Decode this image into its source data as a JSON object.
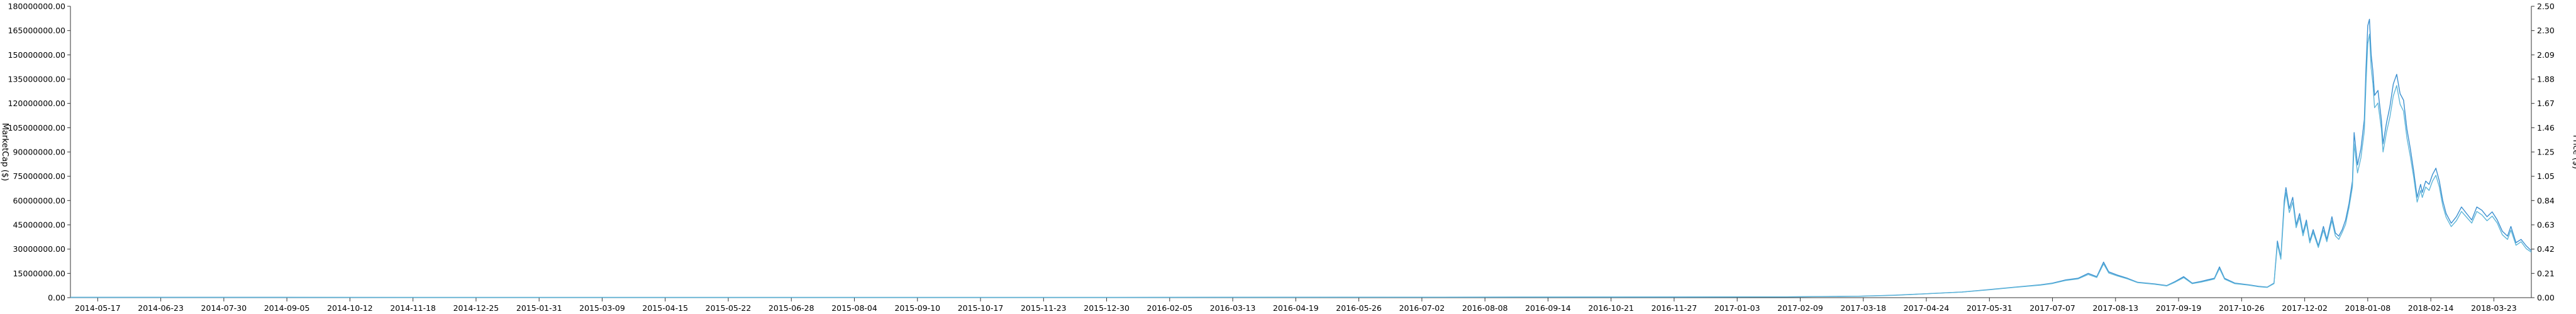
{
  "chart_data": {
    "type": "line",
    "title": "",
    "ylabel_left": "MarketCap ($)",
    "ylabel_right": "Price ($)",
    "y_left_range": [
      0,
      180000000
    ],
    "y_right_range": [
      0,
      2.5
    ],
    "x_range": [
      "2014-05-01",
      "2018-04-14"
    ],
    "grid": false,
    "legend": "none",
    "colors": {
      "marketcap": "#3a8fd0",
      "price": "#5fb6d9",
      "axis": "#333333"
    },
    "y_left_ticks": [
      "0.00",
      "15000000.00",
      "30000000.00",
      "45000000.00",
      "60000000.00",
      "75000000.00",
      "90000000.00",
      "105000000.00",
      "120000000.00",
      "135000000.00",
      "150000000.00",
      "165000000.00",
      "180000000.00"
    ],
    "y_right_ticks": [
      "0.00",
      "0.21",
      "0.42",
      "0.63",
      "0.84",
      "1.05",
      "1.25",
      "1.46",
      "1.67",
      "1.88",
      "2.09",
      "2.30",
      "2.50"
    ],
    "x_ticks": [
      "2014-05-17",
      "2014-06-23",
      "2014-07-30",
      "2014-09-05",
      "2014-10-12",
      "2014-11-18",
      "2014-12-25",
      "2015-01-31",
      "2015-03-09",
      "2015-04-15",
      "2015-05-22",
      "2015-06-28",
      "2015-08-04",
      "2015-09-10",
      "2015-10-17",
      "2015-11-23",
      "2015-12-30",
      "2016-02-05",
      "2016-03-13",
      "2016-04-19",
      "2016-05-26",
      "2016-07-02",
      "2016-08-08",
      "2016-09-14",
      "2016-10-21",
      "2016-11-27",
      "2017-01-03",
      "2017-02-09",
      "2017-03-18",
      "2017-04-24",
      "2017-05-31",
      "2017-07-07",
      "2017-08-13",
      "2017-09-19",
      "2017-10-26",
      "2017-12-02",
      "2018-01-08",
      "2018-02-14",
      "2018-03-23"
    ],
    "series": [
      {
        "name": "MarketCap",
        "axis": "left",
        "points": [
          [
            "2014-05-01",
            200000
          ],
          [
            "2014-09-01",
            200000
          ],
          [
            "2015-01-01",
            150000
          ],
          [
            "2015-06-01",
            150000
          ],
          [
            "2015-12-01",
            150000
          ],
          [
            "2016-06-01",
            300000
          ],
          [
            "2016-12-01",
            400000
          ],
          [
            "2017-02-01",
            500000
          ],
          [
            "2017-03-15",
            900000
          ],
          [
            "2017-04-05",
            1500000
          ],
          [
            "2017-04-25",
            2500000
          ],
          [
            "2017-05-15",
            3500000
          ],
          [
            "2017-05-31",
            5000000
          ],
          [
            "2017-06-15",
            6500000
          ],
          [
            "2017-06-30",
            8000000
          ],
          [
            "2017-07-07",
            9000000
          ],
          [
            "2017-07-15",
            11000000
          ],
          [
            "2017-07-22",
            12000000
          ],
          [
            "2017-07-28",
            15000000
          ],
          [
            "2017-08-02",
            13000000
          ],
          [
            "2017-08-06",
            22000000
          ],
          [
            "2017-08-09",
            16000000
          ],
          [
            "2017-08-14",
            14000000
          ],
          [
            "2017-08-20",
            12000000
          ],
          [
            "2017-08-26",
            9500000
          ],
          [
            "2017-09-05",
            8500000
          ],
          [
            "2017-09-12",
            7500000
          ],
          [
            "2017-09-17",
            10000000
          ],
          [
            "2017-09-22",
            13000000
          ],
          [
            "2017-09-27",
            9000000
          ],
          [
            "2017-10-02",
            10000000
          ],
          [
            "2017-10-06",
            11000000
          ],
          [
            "2017-10-10",
            12000000
          ],
          [
            "2017-10-13",
            19000000
          ],
          [
            "2017-10-16",
            12000000
          ],
          [
            "2017-10-22",
            9000000
          ],
          [
            "2017-10-30",
            8000000
          ],
          [
            "2017-11-05",
            7000000
          ],
          [
            "2017-11-10",
            6500000
          ],
          [
            "2017-11-14",
            9000000
          ],
          [
            "2017-11-16",
            35000000
          ],
          [
            "2017-11-18",
            25000000
          ],
          [
            "2017-11-20",
            60000000
          ],
          [
            "2017-11-21",
            68000000
          ],
          [
            "2017-11-23",
            55000000
          ],
          [
            "2017-11-25",
            62000000
          ],
          [
            "2017-11-27",
            45000000
          ],
          [
            "2017-11-29",
            52000000
          ],
          [
            "2017-12-01",
            40000000
          ],
          [
            "2017-12-03",
            48000000
          ],
          [
            "2017-12-05",
            35000000
          ],
          [
            "2017-12-07",
            42000000
          ],
          [
            "2017-12-10",
            32000000
          ],
          [
            "2017-12-13",
            44000000
          ],
          [
            "2017-12-15",
            36000000
          ],
          [
            "2017-12-18",
            50000000
          ],
          [
            "2017-12-20",
            40000000
          ],
          [
            "2017-12-22",
            38000000
          ],
          [
            "2017-12-24",
            42000000
          ],
          [
            "2017-12-26",
            48000000
          ],
          [
            "2017-12-28",
            58000000
          ],
          [
            "2017-12-30",
            72000000
          ],
          [
            "2017-12-31",
            102000000
          ],
          [
            "2018-01-02",
            82000000
          ],
          [
            "2018-01-04",
            92000000
          ],
          [
            "2018-01-06",
            110000000
          ],
          [
            "2018-01-07",
            142000000
          ],
          [
            "2018-01-08",
            168000000
          ],
          [
            "2018-01-09",
            172000000
          ],
          [
            "2018-01-10",
            150000000
          ],
          [
            "2018-01-11",
            140000000
          ],
          [
            "2018-01-12",
            125000000
          ],
          [
            "2018-01-14",
            128000000
          ],
          [
            "2018-01-16",
            110000000
          ],
          [
            "2018-01-17",
            95000000
          ],
          [
            "2018-01-19",
            108000000
          ],
          [
            "2018-01-21",
            118000000
          ],
          [
            "2018-01-23",
            132000000
          ],
          [
            "2018-01-25",
            138000000
          ],
          [
            "2018-01-27",
            126000000
          ],
          [
            "2018-01-29",
            122000000
          ],
          [
            "2018-01-31",
            104000000
          ],
          [
            "2018-02-02",
            92000000
          ],
          [
            "2018-02-04",
            78000000
          ],
          [
            "2018-02-06",
            62000000
          ],
          [
            "2018-02-08",
            70000000
          ],
          [
            "2018-02-09",
            65000000
          ],
          [
            "2018-02-11",
            72000000
          ],
          [
            "2018-02-13",
            70000000
          ],
          [
            "2018-02-15",
            76000000
          ],
          [
            "2018-02-17",
            80000000
          ],
          [
            "2018-02-19",
            72000000
          ],
          [
            "2018-02-21",
            60000000
          ],
          [
            "2018-02-23",
            52000000
          ],
          [
            "2018-02-26",
            46000000
          ],
          [
            "2018-03-01",
            50000000
          ],
          [
            "2018-03-04",
            56000000
          ],
          [
            "2018-03-07",
            52000000
          ],
          [
            "2018-03-10",
            48000000
          ],
          [
            "2018-03-13",
            56000000
          ],
          [
            "2018-03-16",
            54000000
          ],
          [
            "2018-03-19",
            50000000
          ],
          [
            "2018-03-22",
            53000000
          ],
          [
            "2018-03-25",
            48000000
          ],
          [
            "2018-03-28",
            41000000
          ],
          [
            "2018-03-31",
            38000000
          ],
          [
            "2018-04-02",
            44000000
          ],
          [
            "2018-04-05",
            34000000
          ],
          [
            "2018-04-08",
            36000000
          ],
          [
            "2018-04-11",
            32000000
          ],
          [
            "2018-04-14",
            29000000
          ]
        ]
      },
      {
        "name": "Price",
        "axis": "right",
        "points": [
          [
            "2014-05-01",
            0.003
          ],
          [
            "2014-09-01",
            0.003
          ],
          [
            "2015-01-01",
            0.002
          ],
          [
            "2015-06-01",
            0.002
          ],
          [
            "2015-12-01",
            0.002
          ],
          [
            "2016-06-01",
            0.004
          ],
          [
            "2016-12-01",
            0.006
          ],
          [
            "2017-02-01",
            0.007
          ],
          [
            "2017-03-15",
            0.012
          ],
          [
            "2017-04-05",
            0.02
          ],
          [
            "2017-04-25",
            0.034
          ],
          [
            "2017-05-15",
            0.048
          ],
          [
            "2017-05-31",
            0.068
          ],
          [
            "2017-06-15",
            0.089
          ],
          [
            "2017-06-30",
            0.108
          ],
          [
            "2017-07-07",
            0.121
          ],
          [
            "2017-07-15",
            0.148
          ],
          [
            "2017-07-22",
            0.161
          ],
          [
            "2017-07-28",
            0.199
          ],
          [
            "2017-08-02",
            0.173
          ],
          [
            "2017-08-06",
            0.29
          ],
          [
            "2017-08-09",
            0.212
          ],
          [
            "2017-08-14",
            0.187
          ],
          [
            "2017-08-20",
            0.161
          ],
          [
            "2017-08-26",
            0.129
          ],
          [
            "2017-09-05",
            0.115
          ],
          [
            "2017-09-12",
            0.101
          ],
          [
            "2017-09-17",
            0.133
          ],
          [
            "2017-09-22",
            0.172
          ],
          [
            "2017-09-27",
            0.12
          ],
          [
            "2017-10-02",
            0.133
          ],
          [
            "2017-10-06",
            0.146
          ],
          [
            "2017-10-10",
            0.16
          ],
          [
            "2017-10-13",
            0.25
          ],
          [
            "2017-10-16",
            0.159
          ],
          [
            "2017-10-22",
            0.12
          ],
          [
            "2017-10-30",
            0.107
          ],
          [
            "2017-11-05",
            0.094
          ],
          [
            "2017-11-10",
            0.088
          ],
          [
            "2017-11-14",
            0.12
          ],
          [
            "2017-11-16",
            0.46
          ],
          [
            "2017-11-18",
            0.33
          ],
          [
            "2017-11-20",
            0.79
          ],
          [
            "2017-11-21",
            0.9
          ],
          [
            "2017-11-23",
            0.73
          ],
          [
            "2017-11-25",
            0.82
          ],
          [
            "2017-11-27",
            0.6
          ],
          [
            "2017-11-29",
            0.69
          ],
          [
            "2017-12-01",
            0.53
          ],
          [
            "2017-12-03",
            0.64
          ],
          [
            "2017-12-05",
            0.47
          ],
          [
            "2017-12-07",
            0.56
          ],
          [
            "2017-12-10",
            0.43
          ],
          [
            "2017-12-13",
            0.58
          ],
          [
            "2017-12-15",
            0.48
          ],
          [
            "2017-12-18",
            0.66
          ],
          [
            "2017-12-20",
            0.53
          ],
          [
            "2017-12-22",
            0.5
          ],
          [
            "2017-12-24",
            0.56
          ],
          [
            "2017-12-26",
            0.63
          ],
          [
            "2017-12-28",
            0.77
          ],
          [
            "2017-12-30",
            0.95
          ],
          [
            "2017-12-31",
            1.32
          ],
          [
            "2018-01-02",
            1.07
          ],
          [
            "2018-01-04",
            1.2
          ],
          [
            "2018-01-06",
            1.43
          ],
          [
            "2018-01-07",
            1.84
          ],
          [
            "2018-01-08",
            2.18
          ],
          [
            "2018-01-09",
            2.26
          ],
          [
            "2018-01-10",
            1.97
          ],
          [
            "2018-01-11",
            1.84
          ],
          [
            "2018-01-12",
            1.63
          ],
          [
            "2018-01-14",
            1.67
          ],
          [
            "2018-01-16",
            1.45
          ],
          [
            "2018-01-17",
            1.25
          ],
          [
            "2018-01-19",
            1.42
          ],
          [
            "2018-01-21",
            1.55
          ],
          [
            "2018-01-23",
            1.73
          ],
          [
            "2018-01-25",
            1.82
          ],
          [
            "2018-01-27",
            1.66
          ],
          [
            "2018-01-29",
            1.6
          ],
          [
            "2018-01-31",
            1.37
          ],
          [
            "2018-02-02",
            1.21
          ],
          [
            "2018-02-04",
            1.03
          ],
          [
            "2018-02-06",
            0.82
          ],
          [
            "2018-02-08",
            0.92
          ],
          [
            "2018-02-09",
            0.86
          ],
          [
            "2018-02-11",
            0.95
          ],
          [
            "2018-02-13",
            0.92
          ],
          [
            "2018-02-15",
            1.0
          ],
          [
            "2018-02-17",
            1.05
          ],
          [
            "2018-02-19",
            0.95
          ],
          [
            "2018-02-21",
            0.79
          ],
          [
            "2018-02-23",
            0.69
          ],
          [
            "2018-02-26",
            0.61
          ],
          [
            "2018-03-01",
            0.66
          ],
          [
            "2018-03-04",
            0.74
          ],
          [
            "2018-03-07",
            0.69
          ],
          [
            "2018-03-10",
            0.64
          ],
          [
            "2018-03-13",
            0.74
          ],
          [
            "2018-03-16",
            0.71
          ],
          [
            "2018-03-19",
            0.66
          ],
          [
            "2018-03-22",
            0.7
          ],
          [
            "2018-03-25",
            0.64
          ],
          [
            "2018-03-28",
            0.54
          ],
          [
            "2018-03-31",
            0.5
          ],
          [
            "2018-04-02",
            0.58
          ],
          [
            "2018-04-05",
            0.45
          ],
          [
            "2018-04-08",
            0.48
          ],
          [
            "2018-04-11",
            0.42
          ],
          [
            "2018-04-14",
            0.39
          ]
        ]
      }
    ]
  }
}
